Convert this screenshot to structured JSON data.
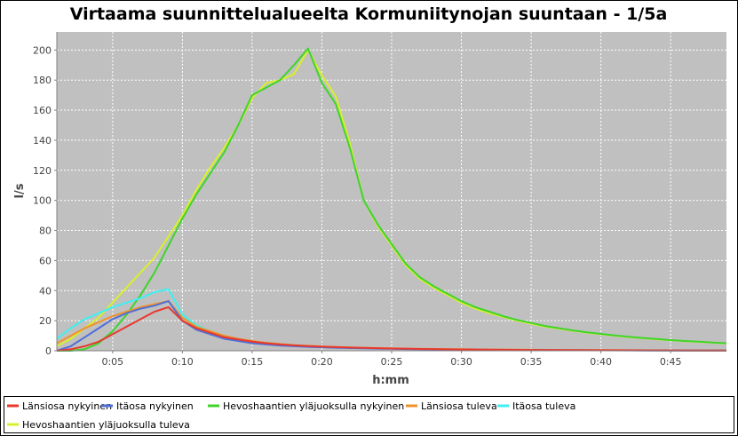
{
  "chart_data": {
    "type": "line",
    "title": "Virtaama suunnittelualueelta Kormuniitynojan suuntaan - 1/5a",
    "xlabel": "h:mm",
    "ylabel": "l/s",
    "xlim": [
      1,
      49
    ],
    "ylim": [
      0,
      212
    ],
    "x_unit": "minutes",
    "x_ticks": [
      5,
      10,
      15,
      20,
      25,
      30,
      35,
      40,
      45
    ],
    "x_tick_labels": [
      "0:05",
      "0:10",
      "0:15",
      "0:20",
      "0:25",
      "0:30",
      "0:35",
      "0:40",
      "0:45"
    ],
    "y_ticks": [
      0,
      20,
      40,
      60,
      80,
      100,
      120,
      140,
      160,
      180,
      200
    ],
    "y_tick_labels": [
      "0",
      "20",
      "40",
      "60",
      "80",
      "100",
      "120",
      "140",
      "160",
      "180",
      "200"
    ],
    "grid": true,
    "legend_position": "bottom",
    "plot_background": "#c0c0c0",
    "series": [
      {
        "name": "Länsiosa nykyinen",
        "color": "#e8382e",
        "x": [
          1,
          2,
          3,
          4,
          5,
          6,
          7,
          8,
          9,
          10,
          11,
          12,
          13,
          14,
          15,
          16,
          17,
          18,
          19,
          20,
          21,
          22,
          23,
          24,
          25,
          26,
          27,
          28,
          30,
          32,
          34,
          36,
          38,
          40,
          42,
          44,
          46,
          48,
          49
        ],
        "y": [
          0,
          1,
          3,
          6,
          11,
          16,
          21,
          26,
          29,
          20,
          15,
          12,
          9,
          7.5,
          6,
          5,
          4.2,
          3.6,
          3.1,
          2.7,
          2.4,
          2.1,
          1.9,
          1.7,
          1.5,
          1.4,
          1.2,
          1.1,
          0.9,
          0.7,
          0.6,
          0.5,
          0.4,
          0.35,
          0.3,
          0.25,
          0.2,
          0.2,
          0.2
        ]
      },
      {
        "name": "Itäosa nykyinen",
        "color": "#4f6fd8",
        "x": [
          1,
          2,
          3,
          4,
          5,
          6,
          7,
          8,
          9,
          10,
          11,
          12,
          13,
          14,
          15,
          16,
          17,
          18,
          19,
          20,
          21,
          22,
          23,
          24,
          25,
          26,
          28,
          30,
          32,
          34,
          36,
          38,
          40,
          42,
          44,
          46,
          48,
          49
        ],
        "y": [
          0,
          3,
          9,
          15,
          21,
          25,
          28,
          30,
          33,
          20,
          14,
          11,
          8,
          6.5,
          5,
          4.2,
          3.5,
          3,
          2.6,
          2.3,
          2,
          1.8,
          1.6,
          1.4,
          1.3,
          1.1,
          0.9,
          0.8,
          0.6,
          0.5,
          0.4,
          0.35,
          0.3,
          0.25,
          0.2,
          0.2,
          0.15,
          0.15
        ]
      },
      {
        "name": "Hevoshaantien yläjuoksulla nykyinen",
        "color": "#3fd42b",
        "x": [
          1,
          2,
          3,
          4,
          5,
          6,
          7,
          8,
          9,
          10,
          11,
          12,
          13,
          14,
          15,
          16,
          17,
          18,
          19,
          20,
          21,
          22,
          23,
          24,
          25,
          26,
          27,
          28,
          29,
          30,
          31,
          32,
          33,
          34,
          35,
          36,
          37,
          38,
          39,
          40,
          41,
          42,
          43,
          44,
          45,
          46,
          47,
          48,
          49
        ],
        "y": [
          0,
          0,
          1,
          5,
          13,
          24,
          37,
          52,
          70,
          88,
          104,
          118,
          132,
          150,
          170,
          175,
          180,
          190,
          201,
          178,
          164,
          135,
          100,
          84,
          71,
          58,
          49,
          43,
          38,
          33,
          29,
          26,
          23,
          20.5,
          18.5,
          16.5,
          15,
          13.5,
          12.3,
          11.2,
          10.2,
          9.3,
          8.5,
          7.8,
          7.1,
          6.5,
          6,
          5.5,
          5
        ]
      },
      {
        "name": "Länsiosa tuleva",
        "color": "#f0922a",
        "x": [
          1,
          2,
          3,
          4,
          5,
          6,
          7,
          8,
          9,
          10,
          11,
          12,
          13,
          14,
          15,
          16,
          17,
          18,
          19,
          20,
          21,
          22,
          23,
          24,
          25,
          26,
          28,
          30,
          32,
          34,
          36,
          38,
          40,
          42,
          44,
          46,
          48,
          49
        ],
        "y": [
          5,
          10,
          15,
          19,
          23,
          26,
          29,
          31,
          33,
          22,
          16,
          13,
          10,
          8,
          6.5,
          5.3,
          4.5,
          3.8,
          3.3,
          2.9,
          2.5,
          2.2,
          2,
          1.8,
          1.6,
          1.4,
          1.2,
          1,
          0.8,
          0.7,
          0.6,
          0.5,
          0.4,
          0.35,
          0.3,
          0.25,
          0.2,
          0.2
        ]
      },
      {
        "name": "Itäosa tuleva",
        "color": "#3ef0f0",
        "x": [
          1,
          2,
          3,
          4,
          5,
          6,
          7,
          8,
          9,
          10,
          11,
          12,
          13,
          14,
          15,
          16,
          17,
          18,
          19,
          20,
          21,
          22,
          23,
          24,
          25,
          26,
          28,
          30,
          32,
          34,
          36,
          38,
          40,
          42,
          44,
          46,
          48,
          49
        ],
        "y": [
          8,
          15,
          21,
          25,
          29,
          32,
          35,
          39,
          41,
          24,
          17,
          13,
          10,
          8,
          6.3,
          5.2,
          4.4,
          3.7,
          3.2,
          2.8,
          2.4,
          2.1,
          1.9,
          1.7,
          1.5,
          1.3,
          1.1,
          0.9,
          0.7,
          0.6,
          0.5,
          0.4,
          0.35,
          0.3,
          0.25,
          0.2,
          0.2,
          0.15
        ]
      },
      {
        "name": "Hevoshaantien yläjuoksulla tuleva",
        "color": "#d8f02a",
        "x": [
          1,
          2,
          3,
          4,
          5,
          6,
          7,
          8,
          9,
          10,
          11,
          12,
          13,
          14,
          15,
          16,
          17,
          18,
          19,
          20,
          21,
          22,
          23,
          24,
          25,
          26,
          27,
          28,
          29,
          30,
          31,
          32,
          33,
          34,
          35,
          36,
          37,
          38,
          39,
          40,
          41,
          42,
          43,
          44,
          45,
          46,
          47,
          48,
          49
        ],
        "y": [
          3,
          8,
          15,
          22,
          32,
          42,
          52,
          62,
          76,
          90,
          107,
          122,
          135,
          150,
          168,
          178,
          180,
          184,
          200,
          183,
          169,
          138,
          100,
          83,
          70,
          57,
          48,
          42,
          37,
          32,
          28,
          25,
          22.5,
          20,
          18,
          16,
          14.7,
          13.3,
          12,
          11,
          10,
          9.1,
          8.3,
          7.6,
          7,
          6.4,
          5.9,
          5.4,
          4.9
        ]
      }
    ]
  }
}
